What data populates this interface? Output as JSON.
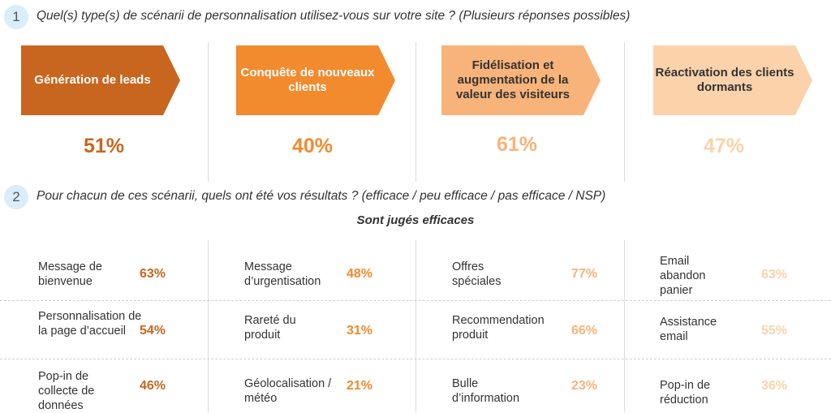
{
  "questions": [
    {
      "number": "1",
      "text": "Quel(s) type(s) de scénarii de personnalisation utilisez-vous sur votre site ? (Plusieurs réponses possibles)"
    },
    {
      "number": "2",
      "text": "Pour chacun de ces scénarii, quels ont été vos résultats ? (efficace / peu efficace / pas efficace / NSP)"
    }
  ],
  "colors": {
    "col1": "#c8661f",
    "col2": "#f28a2e",
    "col3": "#f8b37a",
    "col4": "#fcd2aa",
    "label_dark": "#ffffff",
    "label_light": "#333333"
  },
  "scenarios": [
    {
      "label": "Génération de leads",
      "pct": "51%"
    },
    {
      "label": "Conquête de nouveaux clients",
      "pct": "40%"
    },
    {
      "label": "Fidélisation et augmentation de la valeur des visiteurs",
      "pct": "61%"
    },
    {
      "label": "Réactivation des clients dormants",
      "pct": "47%"
    }
  ],
  "results_title": "Sont jugés efficaces",
  "results": [
    [
      {
        "label": "Message de bienvenue",
        "value": "63%"
      },
      {
        "label": "Personnalisation de la page d’accueil",
        "value": "54%"
      },
      {
        "label": "Pop-in de collecte de données",
        "value": "46%"
      }
    ],
    [
      {
        "label": "Message d’urgentisation",
        "value": "48%"
      },
      {
        "label": "Rareté du produit",
        "value": "31%"
      },
      {
        "label": "Géolocalisation / météo",
        "value": "21%"
      }
    ],
    [
      {
        "label": "Offres spéciales",
        "value": "77%"
      },
      {
        "label": "Recommendation produit",
        "value": "66%"
      },
      {
        "label": "Bulle d’information",
        "value": "23%"
      }
    ],
    [
      {
        "label": "Email abandon panier",
        "value": "63%"
      },
      {
        "label": "Assistance email",
        "value": "55%"
      },
      {
        "label": "Pop-in de réduction",
        "value": "36%"
      }
    ]
  ]
}
